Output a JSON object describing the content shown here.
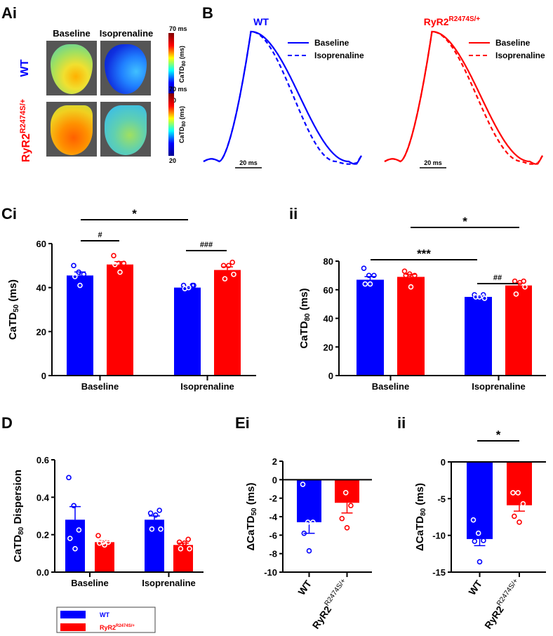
{
  "panel_labels": {
    "A": "Ai",
    "B": "B",
    "Ci": "Ci",
    "Cii": "ii",
    "D": "D",
    "Ei": "Ei",
    "Eii": "ii"
  },
  "colors": {
    "wt": "#0000ff",
    "ryr2": "#ff0000"
  },
  "panel_a": {
    "col_headers": [
      "Baseline",
      "Isoprenaline"
    ],
    "row_labels": {
      "wt": "WT",
      "ryr2": "RyR2",
      "ryr2_sup": "R2474S/+"
    },
    "colorbar": {
      "max": "70 ms",
      "min": "20",
      "label": "CaTD",
      "label_sub": "80",
      "label_unit": " (ms)",
      "colormap": "jet"
    }
  },
  "panel_b": {
    "wt_title": "WT",
    "ryr2_title": "RyR2",
    "ryr2_title_sup": "R2474S/+",
    "legend": [
      "Baseline",
      "Isoprenaline"
    ],
    "scale_bar": "20 ms"
  },
  "legend": {
    "wt": "WT",
    "ryr2": "RyR2",
    "ryr2_sup": "R2474S/+"
  },
  "chart_data": [
    {
      "id": "Ci",
      "type": "bar",
      "categories": [
        "Baseline",
        "Isoprenaline"
      ],
      "ylabel": "CaTD",
      "ylabel_sub": "50",
      "ylabel_unit": " (ms)",
      "ylim": [
        0,
        60
      ],
      "yticks": [
        "0",
        "20",
        "40",
        "60"
      ],
      "series": [
        {
          "group": "wt",
          "means": [
            45.5,
            40
          ],
          "sem": [
            1.6,
            0.4
          ],
          "points": [
            [
              50,
              47,
              46,
              45,
              41
            ],
            [
              41,
              41,
              40,
              41,
              39.5
            ]
          ]
        },
        {
          "group": "ryr2",
          "means": [
            50.5,
            48
          ],
          "sem": [
            1.3,
            1.4
          ],
          "points": [
            [
              54.5,
              51,
              51,
              50.5,
              47
            ],
            [
              51.5,
              50,
              50,
              46,
              44
            ]
          ]
        }
      ],
      "annotations": [
        {
          "text": "*",
          "from": "Baseline-WT",
          "to": "Isoprenaline-WT"
        },
        {
          "text": "#",
          "from": "Baseline-WT",
          "to": "Baseline-RyR2"
        },
        {
          "text": "###",
          "from": "Isoprenaline-WT",
          "to": "Isoprenaline-RyR2"
        }
      ]
    },
    {
      "id": "Cii",
      "type": "bar",
      "categories": [
        "Baseline",
        "Isoprenaline"
      ],
      "ylabel": "CaTD",
      "ylabel_sub": "80",
      "ylabel_unit": " (ms)",
      "ylim": [
        0,
        80
      ],
      "yticks": [
        "0",
        "20",
        "40",
        "60",
        "80"
      ],
      "series": [
        {
          "group": "wt",
          "means": [
            67,
            55
          ],
          "sem": [
            2.2,
            0.6
          ],
          "points": [
            [
              75,
              70,
              70,
              64,
              64
            ],
            [
              56.5,
              56.5,
              55,
              54,
              55
            ]
          ]
        },
        {
          "group": "ryr2",
          "means": [
            69,
            63
          ],
          "sem": [
            1.8,
            1.6
          ],
          "points": [
            [
              73,
              71,
              70,
              70,
              62
            ],
            [
              66,
              66,
              65,
              62,
              57
            ]
          ]
        }
      ],
      "annotations": [
        {
          "text": "*",
          "from": "Baseline-RyR2",
          "to": "Isoprenaline-RyR2"
        },
        {
          "text": "***",
          "from": "Baseline-WT",
          "to": "Isoprenaline-WT"
        },
        {
          "text": "##",
          "from": "Isoprenaline-WT",
          "to": "Isoprenaline-RyR2"
        }
      ]
    },
    {
      "id": "D",
      "type": "bar",
      "categories": [
        "Baseline",
        "Isoprenaline"
      ],
      "ylabel": "CaTD",
      "ylabel_sub": "80",
      "ylabel_unit": " Dispersion",
      "ylim": [
        0,
        0.6
      ],
      "yticks": [
        "0.0",
        "0.2",
        "0.4",
        "0.6"
      ],
      "series": [
        {
          "group": "wt",
          "means": [
            0.28,
            0.28
          ],
          "sem": [
            0.07,
            0.02
          ],
          "points": [
            [
              0.505,
              0.355,
              0.225,
              0.18,
              0.125
            ],
            [
              0.33,
              0.315,
              0.305,
              0.23,
              0.23
            ]
          ]
        },
        {
          "group": "ryr2",
          "means": [
            0.16,
            0.145
          ],
          "sem": [
            0.008,
            0.01
          ],
          "points": [
            [
              0.195,
              0.16,
              0.16,
              0.155,
              0.145
            ],
            [
              0.175,
              0.16,
              0.155,
              0.125,
              0.125
            ]
          ]
        }
      ],
      "annotations": []
    },
    {
      "id": "Ei",
      "type": "bar",
      "categories": [
        "WT",
        "RyR2"
      ],
      "category_sup": [
        "",
        "R2474S/+"
      ],
      "ylabel": "ΔCaTD",
      "ylabel_sub": "50",
      "ylabel_unit": " (ms)",
      "ylim": [
        -10,
        2
      ],
      "yticks": [
        "-10",
        "-8",
        "-6",
        "-4",
        "-2",
        "0",
        "2"
      ],
      "series": [
        {
          "group": "wt",
          "means": [
            -4.6
          ],
          "sem": [
            1.2
          ],
          "points": [
            [
              -0.5,
              -4.6,
              -4.6,
              -5.8,
              -7.7
            ]
          ]
        },
        {
          "group": "ryr2",
          "means": [
            -2.5
          ],
          "sem": [
            1.1
          ],
          "points": [
            [
              0.9,
              -1.4,
              -2.8,
              -4.2,
              -5.2
            ]
          ]
        }
      ],
      "annotations": []
    },
    {
      "id": "Eii",
      "type": "bar",
      "categories": [
        "WT",
        "RyR2"
      ],
      "category_sup": [
        "",
        "R2474S/+"
      ],
      "ylabel": "ΔCaTD",
      "ylabel_sub": "80",
      "ylabel_unit": " (ms)",
      "ylim": [
        -15,
        0
      ],
      "yticks": [
        "-15",
        "-10",
        "-5",
        "0"
      ],
      "series": [
        {
          "group": "wt",
          "means": [
            -10.5
          ],
          "sem": [
            0.9
          ],
          "points": [
            [
              -7.9,
              -9.7,
              -10.7,
              -10.8,
              -13.6
            ]
          ]
        },
        {
          "group": "ryr2",
          "means": [
            -5.9
          ],
          "sem": [
            0.8
          ],
          "points": [
            [
              -4.2,
              -4.2,
              -5.7,
              -7.4,
              -8.2
            ]
          ]
        }
      ],
      "annotations": [
        {
          "text": "*",
          "from": "WT",
          "to": "RyR2"
        }
      ]
    }
  ]
}
